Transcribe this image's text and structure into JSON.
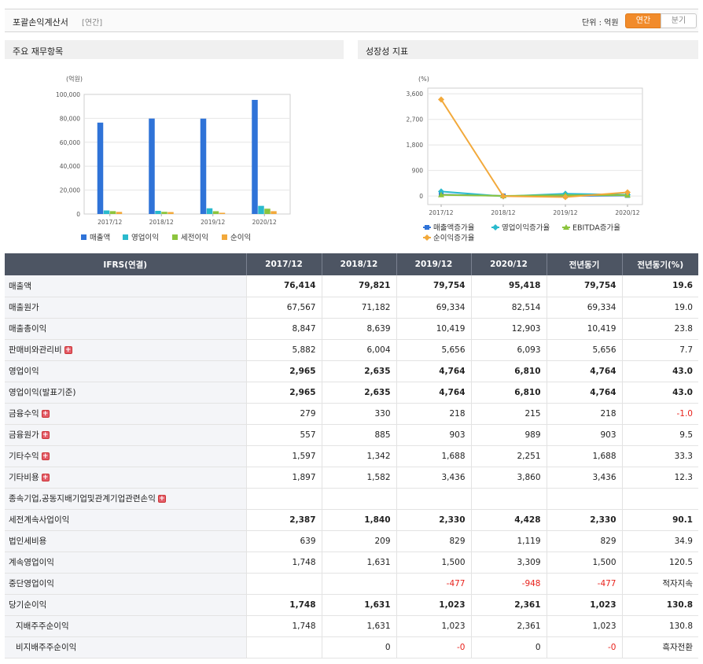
{
  "header": {
    "title": "포괄손익계산서",
    "period_tag": "[연간]",
    "unit_label": "단위 : 억원",
    "toggle_annual": "연간",
    "toggle_quarter": "분기"
  },
  "panels": {
    "left_title": "주요 재무항목",
    "right_title": "성장성 지표"
  },
  "chart_data": [
    {
      "type": "bar",
      "title": "",
      "ylabel": "(억원)",
      "ylim": [
        0,
        100000
      ],
      "yticks": [
        "100,000",
        "80,000",
        "60,000",
        "40,000",
        "20,000",
        "0"
      ],
      "categories": [
        "2017/12",
        "2018/12",
        "2019/12",
        "2020/12"
      ],
      "legend_position": "bottom",
      "grid": true,
      "series": [
        {
          "name": "매출액",
          "color": "#2f73d8",
          "values": [
            76414,
            79821,
            79754,
            95418
          ]
        },
        {
          "name": "영업이익",
          "color": "#2abacd",
          "values": [
            2965,
            2635,
            4764,
            6810
          ]
        },
        {
          "name": "세전이익",
          "color": "#8cc43d",
          "values": [
            2387,
            1840,
            2330,
            4428
          ]
        },
        {
          "name": "순이익",
          "color": "#f2a93b",
          "values": [
            1748,
            1631,
            1023,
            2361
          ]
        }
      ]
    },
    {
      "type": "line",
      "title": "",
      "ylabel": "(%)",
      "ylim": [
        -300,
        3800
      ],
      "yticks": [
        "3,600",
        "2,700",
        "1,800",
        "900",
        "0"
      ],
      "yticks_values": [
        3600,
        2700,
        1800,
        900,
        0
      ],
      "categories": [
        "2017/12",
        "2018/12",
        "2019/12",
        "2020/12"
      ],
      "legend_position": "bottom",
      "grid": true,
      "series": [
        {
          "name": "매출액증가율",
          "color": "#2f73d8",
          "marker": "square",
          "values": [
            50,
            4.5,
            -0.1,
            19.6
          ]
        },
        {
          "name": "영업이익증가율",
          "color": "#2abacd",
          "marker": "diamond",
          "values": [
            160,
            -11.1,
            80.8,
            43.0
          ]
        },
        {
          "name": "EBITDA증가율",
          "color": "#8cc43d",
          "marker": "triangle",
          "values": [
            40,
            5,
            30,
            30
          ]
        },
        {
          "name": "순이익증가율",
          "color": "#f2a93b",
          "marker": "diamond",
          "values": [
            3400,
            -6.7,
            -37.3,
            130.8
          ]
        }
      ]
    }
  ],
  "table": {
    "headers": [
      "IFRS(연결)",
      "2017/12",
      "2018/12",
      "2019/12",
      "2020/12",
      "전년동기",
      "전년동기(%)"
    ],
    "rows": [
      {
        "label": "매출액",
        "bold": true,
        "plus": false,
        "indent": false,
        "values": [
          "76,414",
          "79,821",
          "79,754",
          "95,418",
          "79,754",
          "19.6"
        ]
      },
      {
        "label": "매출원가",
        "bold": false,
        "plus": false,
        "indent": false,
        "values": [
          "67,567",
          "71,182",
          "69,334",
          "82,514",
          "69,334",
          "19.0"
        ]
      },
      {
        "label": "매출총이익",
        "bold": false,
        "plus": false,
        "indent": false,
        "values": [
          "8,847",
          "8,639",
          "10,419",
          "12,903",
          "10,419",
          "23.8"
        ]
      },
      {
        "label": "판매비와관리비",
        "bold": false,
        "plus": true,
        "indent": false,
        "values": [
          "5,882",
          "6,004",
          "5,656",
          "6,093",
          "5,656",
          "7.7"
        ]
      },
      {
        "label": "영업이익",
        "bold": true,
        "plus": false,
        "indent": false,
        "values": [
          "2,965",
          "2,635",
          "4,764",
          "6,810",
          "4,764",
          "43.0"
        ]
      },
      {
        "label": "영업이익(발표기준)",
        "bold": true,
        "plus": false,
        "indent": false,
        "values": [
          "2,965",
          "2,635",
          "4,764",
          "6,810",
          "4,764",
          "43.0"
        ]
      },
      {
        "label": "금융수익",
        "bold": false,
        "plus": true,
        "indent": false,
        "values": [
          "279",
          "330",
          "218",
          "215",
          "218",
          "-1.0"
        ]
      },
      {
        "label": "금융원가",
        "bold": false,
        "plus": true,
        "indent": false,
        "values": [
          "557",
          "885",
          "903",
          "989",
          "903",
          "9.5"
        ]
      },
      {
        "label": "기타수익",
        "bold": false,
        "plus": true,
        "indent": false,
        "values": [
          "1,597",
          "1,342",
          "1,688",
          "2,251",
          "1,688",
          "33.3"
        ]
      },
      {
        "label": "기타비용",
        "bold": false,
        "plus": true,
        "indent": false,
        "values": [
          "1,897",
          "1,582",
          "3,436",
          "3,860",
          "3,436",
          "12.3"
        ]
      },
      {
        "label": "종속기업,공동지배기업및관계기업관련손익",
        "bold": false,
        "plus": true,
        "indent": false,
        "values": [
          "",
          "",
          "",
          "",
          "",
          ""
        ]
      },
      {
        "label": "세전계속사업이익",
        "bold": true,
        "plus": false,
        "indent": false,
        "values": [
          "2,387",
          "1,840",
          "2,330",
          "4,428",
          "2,330",
          "90.1"
        ]
      },
      {
        "label": "법인세비용",
        "bold": false,
        "plus": false,
        "indent": false,
        "values": [
          "639",
          "209",
          "829",
          "1,119",
          "829",
          "34.9"
        ]
      },
      {
        "label": "계속영업이익",
        "bold": false,
        "plus": false,
        "indent": false,
        "values": [
          "1,748",
          "1,631",
          "1,500",
          "3,309",
          "1,500",
          "120.5"
        ]
      },
      {
        "label": "중단영업이익",
        "bold": false,
        "plus": false,
        "indent": false,
        "values": [
          "",
          "",
          "-477",
          "-948",
          "-477",
          "적자지속"
        ]
      },
      {
        "label": "당기순이익",
        "bold": true,
        "plus": false,
        "indent": false,
        "values": [
          "1,748",
          "1,631",
          "1,023",
          "2,361",
          "1,023",
          "130.8"
        ]
      },
      {
        "label": "지배주주순이익",
        "bold": false,
        "plus": false,
        "indent": true,
        "values": [
          "1,748",
          "1,631",
          "1,023",
          "2,361",
          "1,023",
          "130.8"
        ]
      },
      {
        "label": "비지배주주순이익",
        "bold": false,
        "plus": false,
        "indent": true,
        "values": [
          "",
          "0",
          "-0",
          "0",
          "-0",
          "흑자전환"
        ]
      }
    ]
  }
}
